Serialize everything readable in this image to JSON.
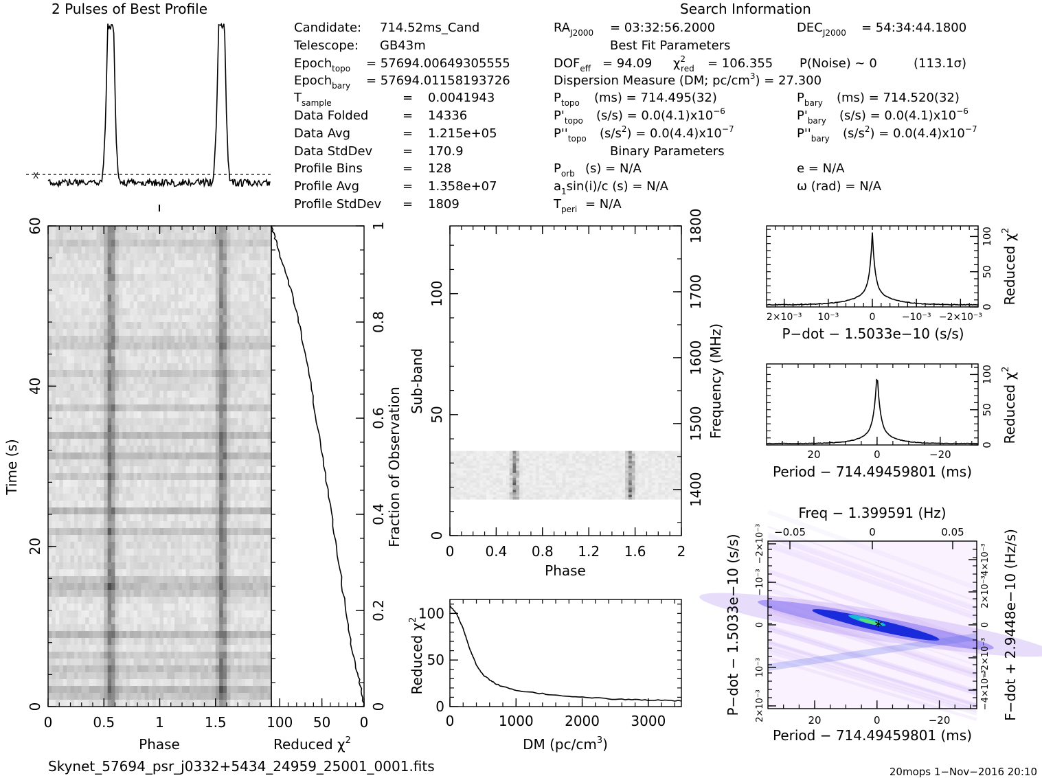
{
  "profile": {
    "title": "2 Pulses of Best Profile"
  },
  "search": {
    "title": "Search Information",
    "candidate_lbl": "Candidate:",
    "candidate": "714.52ms_Cand",
    "telescope_lbl": "Telescope:",
    "telescope": "GB43m",
    "epoch_topo_lbl": "Epoch",
    "epoch_topo_sub": "topo",
    "epoch_topo": "= 57694.00649305555",
    "epoch_bary_lbl": "Epoch",
    "epoch_bary_sub": "bary",
    "epoch_bary": "= 57694.01158193726",
    "tsample_lbl": "T",
    "tsample_sub": "sample",
    "tsample": "0.0041943",
    "data_folded_lbl": "Data Folded",
    "data_folded": "14336",
    "data_avg_lbl": "Data Avg",
    "data_avg": "1.215e+05",
    "data_std_lbl": "Data StdDev",
    "data_std": "170.9",
    "prof_bins_lbl": "Profile Bins",
    "prof_bins": "128",
    "prof_avg_lbl": "Profile Avg",
    "prof_avg": "1.358e+07",
    "prof_std_lbl": "Profile StdDev",
    "prof_std": "1809",
    "eq": "=",
    "ra_lbl": "RA",
    "ra_sub": "J2000",
    "ra": "= 03:32:56.2000",
    "dec_lbl": "DEC",
    "dec_sub": "J2000",
    "dec": "= 54:34:44.1800"
  },
  "bestfit": {
    "title": "Best Fit Parameters",
    "dof_lbl": "DOF",
    "dof_sub": "eff",
    "dof": "= 94.09",
    "chi_lbl": "χ",
    "chi_sup": "2",
    "chi_sub": "red",
    "chi": "= 106.355",
    "pnoise": "P(Noise) ~ 0",
    "sigma": "(113.1σ)",
    "dm_lbl": "Dispersion Measure (DM; pc/cm",
    "dm_sup": "3",
    "dm": ") = 27.300",
    "ptopo_lbl": "P",
    "ptopo_sub": "topo",
    "ptopo": "(ms) =  714.495(32)",
    "pbary_lbl": "P",
    "pbary_sub": "bary",
    "pbary": "(ms) =  714.520(32)",
    "pdtopo_lbl": "P'",
    "pdtopo_sub": "topo",
    "pdtopo": "(s/s) = 0.0(4.1)x10",
    "pdtopo_exp": "−6",
    "pdbary_lbl": "P'",
    "pdbary_sub": "bary",
    "pdbary": "(s/s) = 0.0(4.1)x10",
    "pdbary_exp": "−6",
    "pddtopo_lbl": "P''",
    "pddtopo_sub": "topo",
    "pddtopo_a": "(s/s",
    "pddtopo_sup": "2",
    "pddtopo_b": ") = 0.0(4.4)x10",
    "pddtopo_exp": "−7",
    "pddbary_lbl": "P''",
    "pddbary_sub": "bary",
    "pddbary_a": "(s/s",
    "pddbary_sup": "2",
    "pddbary_b": ") = 0.0(4.4)x10",
    "pddbary_exp": "−7"
  },
  "binary": {
    "title": "Binary Parameters",
    "porb_lbl": "P",
    "porb_sub": "orb",
    "porb": "(s) = N/A",
    "asini": "sin(i)/c (s) = N/A",
    "asini_lbl": "a",
    "asini_sub": "1",
    "tperi_lbl": "T",
    "tperi_sub": "peri",
    "tperi": "= N/A",
    "ecc": "e = N/A",
    "omega": "ω (rad) = N/A"
  },
  "footer": {
    "filename": "Skynet_57694_psr_j0332+5434_24959_25001_0001.fits",
    "stamp": "20mops   1−Nov−2016 20:10"
  },
  "colors": {
    "ink": "#000000",
    "dark_gray": "#555555",
    "plane_bg": "#f6ecff",
    "plane_mid": "#b99cf0",
    "plane_core": "#0a1fd8",
    "plane_peak": "#58e07a"
  },
  "chart_data": [
    {
      "id": "pulse-profile",
      "type": "line",
      "title": "2 Pulses of Best Profile",
      "x_range": [
        0,
        2
      ],
      "pulse_centers": [
        0.56,
        1.56
      ],
      "pulse_width": 0.045,
      "baseline_marker": "X"
    },
    {
      "id": "time-phase",
      "type": "heatmap",
      "xlabel": "Phase",
      "ylabel": "Time (s)",
      "x_range": [
        0,
        2
      ],
      "y_range": [
        0,
        60
      ],
      "xticks": [
        "0",
        "0.5",
        "1",
        "1.5"
      ],
      "yticks": [
        "0",
        "20",
        "40",
        "60"
      ],
      "pulse_phases": [
        0.56,
        1.56
      ]
    },
    {
      "id": "chi-vs-fraction",
      "type": "line",
      "xlabel": "Reduced χ",
      "xlabel_sup": "2",
      "ylabel": "Fraction of Observation",
      "x_range": [
        110,
        0
      ],
      "y_range": [
        0,
        1
      ],
      "xticks": [
        "100",
        "50",
        "0"
      ],
      "yticks": [
        "0",
        "0.2",
        "0.4",
        "0.6",
        "0.8",
        "1"
      ],
      "points": [
        [
          0,
          0
        ],
        [
          5,
          0.05
        ],
        [
          12,
          0.1
        ],
        [
          20,
          0.18
        ],
        [
          30,
          0.3
        ],
        [
          40,
          0.42
        ],
        [
          52,
          0.55
        ],
        [
          62,
          0.66
        ],
        [
          75,
          0.78
        ],
        [
          86,
          0.86
        ],
        [
          98,
          0.93
        ],
        [
          105,
          0.97
        ],
        [
          110,
          1.0
        ]
      ]
    },
    {
      "id": "subband-phase",
      "type": "heatmap",
      "xlabel": "Phase",
      "ylabel": "Sub-band",
      "y2label": "Frequency (MHz)",
      "x_range": [
        0,
        2
      ],
      "y_range": [
        0,
        128
      ],
      "freq_range": [
        1330,
        1800
      ],
      "xticks": [
        "0",
        "0.4",
        "0.8",
        "1.2",
        "1.6",
        "2"
      ],
      "yticks": [
        "0",
        "50",
        "100"
      ],
      "y2ticks": [
        "1400",
        "1500",
        "1600",
        "1700",
        "1800"
      ],
      "active_subbands": [
        15,
        35
      ],
      "pulse_phases": [
        0.56,
        1.56
      ]
    },
    {
      "id": "dm-curve",
      "type": "line",
      "xlabel": "DM (pc/cm",
      "xlabel_sup": "3",
      "xlabel_end": ")",
      "ylabel": "Reduced χ",
      "ylabel_sup": "2",
      "x_range": [
        0,
        3500
      ],
      "y_range": [
        0,
        115
      ],
      "xticks": [
        "0",
        "1000",
        "2000",
        "3000"
      ],
      "yticks": [
        "0",
        "50",
        "100"
      ],
      "points": [
        [
          0,
          108
        ],
        [
          100,
          100
        ],
        [
          200,
          84
        ],
        [
          300,
          62
        ],
        [
          400,
          45
        ],
        [
          500,
          34
        ],
        [
          700,
          24
        ],
        [
          1000,
          17
        ],
        [
          1500,
          13
        ],
        [
          2000,
          10
        ],
        [
          2500,
          8
        ],
        [
          3000,
          7
        ],
        [
          3500,
          6
        ]
      ]
    },
    {
      "id": "pdot-curve",
      "type": "line",
      "xlabel": "P−dot − 1.5033e−10 (s/s)",
      "ylabel": "Reduced χ",
      "ylabel_sup": "2",
      "x_range": [
        0.0024,
        -0.0024
      ],
      "y_range": [
        0,
        115
      ],
      "xticks": [
        "2×10⁻³",
        "10⁻³",
        "0",
        "−10⁻³",
        "−2×10⁻³"
      ],
      "yticks": [
        "0",
        "50",
        "100"
      ],
      "peak": [
        0,
        106
      ],
      "base": 3
    },
    {
      "id": "period-curve",
      "type": "line",
      "xlabel": "Period − 714.49459801 (ms)",
      "ylabel": "Reduced χ",
      "ylabel_sup": "2",
      "x_range": [
        35,
        -32
      ],
      "y_range": [
        0,
        115
      ],
      "xticks": [
        "20",
        "0",
        "−20"
      ],
      "yticks": [
        "0",
        "50",
        "100"
      ],
      "peak": [
        0,
        106
      ],
      "base": 2
    },
    {
      "id": "p-pdot-plane",
      "type": "heatmap",
      "xlabel": "Period − 714.49459801 (ms)",
      "x2label": "Freq − 1.399591 (Hz)",
      "ylabel": "P−dot − 1.5033e−10 (s/s)",
      "y2label": "F−dot + 2.9448e−10 (Hz/s)",
      "x_range": [
        35,
        -32
      ],
      "xticks": [
        "20",
        "0",
        "−20"
      ],
      "x2ticks": [
        "−0.05",
        "0",
        "0.05"
      ],
      "yticks": [
        "2×10⁻³",
        "10⁻³",
        "0",
        "−10⁻³",
        "−2×10⁻³"
      ],
      "y2ticks": [
        "−4×10⁻³",
        "−2×10⁻³",
        "0",
        "2×10⁻³",
        "4×10⁻³"
      ],
      "best": [
        0,
        0
      ]
    }
  ]
}
